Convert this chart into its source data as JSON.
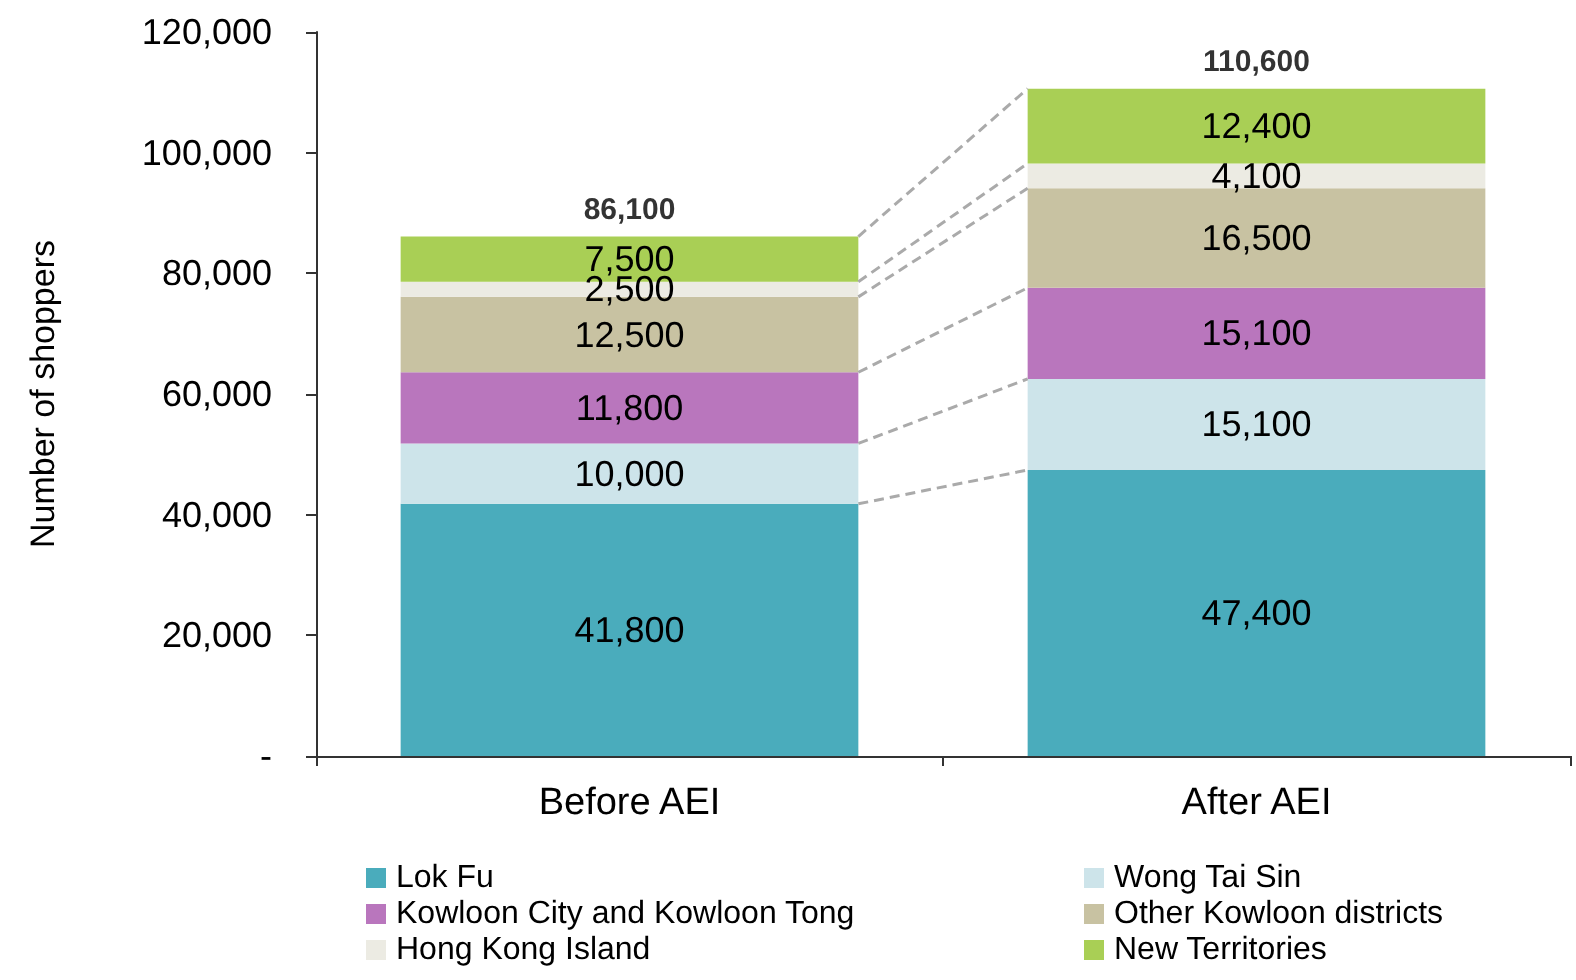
{
  "chart_data": {
    "type": "bar",
    "stacked": true,
    "ylabel": "Number of shoppers",
    "categories": [
      "Before AEI",
      "After AEI"
    ],
    "series": [
      {
        "name": "Lok Fu",
        "color": "#4aacbc",
        "values": [
          41800,
          47400
        ],
        "value_labels": [
          "41,800",
          "47,400"
        ]
      },
      {
        "name": "Wong Tai Sin",
        "color": "#cde4ea",
        "values": [
          10000,
          15100
        ],
        "value_labels": [
          "10,000",
          "15,100"
        ]
      },
      {
        "name": "Kowloon City and Kowloon Tong",
        "color": "#b976bd",
        "values": [
          11800,
          15100
        ],
        "value_labels": [
          "11,800",
          "15,100"
        ]
      },
      {
        "name": "Other Kowloon districts",
        "color": "#c8c2a2",
        "values": [
          12500,
          16500
        ],
        "value_labels": [
          "12,500",
          "16,500"
        ]
      },
      {
        "name": "Hong Kong Island",
        "color": "#ecebe3",
        "values": [
          2500,
          4100
        ],
        "value_labels": [
          "2,500",
          "4,100"
        ]
      },
      {
        "name": "New Territories",
        "color": "#a9cf55",
        "values": [
          7500,
          12400
        ],
        "value_labels": [
          "7,500",
          "12,400"
        ]
      }
    ],
    "totals": [
      "86,100",
      "110,600"
    ],
    "ylim": [
      0,
      120000
    ],
    "yticks": [
      {
        "value": 0,
        "label": "-"
      },
      {
        "value": 20000,
        "label": "20,000"
      },
      {
        "value": 40000,
        "label": "40,000"
      },
      {
        "value": 60000,
        "label": "60,000"
      },
      {
        "value": 80000,
        "label": "80,000"
      },
      {
        "value": 100000,
        "label": "100,000"
      },
      {
        "value": 120000,
        "label": "120,000"
      }
    ],
    "grid": false,
    "legend": "bottom"
  }
}
